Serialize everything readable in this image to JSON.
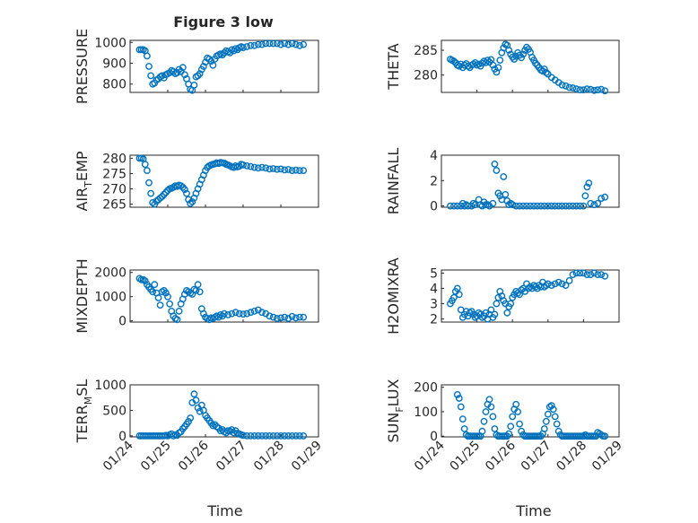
{
  "figure": {
    "title": "Figure 3 low",
    "xlabel": "Time",
    "marker_color": "#0072bd",
    "xlim": [
      0,
      5
    ],
    "xtick_labels": [
      "01/24",
      "01/25",
      "01/26",
      "01/27",
      "01/28",
      "01/29"
    ]
  },
  "chart_data": [
    {
      "type": "scatter",
      "ylabel": "PRESSURE",
      "ylim": [
        760,
        1010
      ],
      "yticks": [
        800,
        900,
        1000
      ],
      "x": [
        0.25,
        0.3,
        0.35,
        0.4,
        0.45,
        0.5,
        0.55,
        0.6,
        0.65,
        0.7,
        0.75,
        0.8,
        0.85,
        0.9,
        0.95,
        1.0,
        1.05,
        1.1,
        1.15,
        1.2,
        1.25,
        1.3,
        1.35,
        1.4,
        1.45,
        1.5,
        1.55,
        1.6,
        1.65,
        1.7,
        1.75,
        1.8,
        1.85,
        1.9,
        1.95,
        2.0,
        2.05,
        2.1,
        2.15,
        2.2,
        2.25,
        2.3,
        2.35,
        2.4,
        2.45,
        2.5,
        2.55,
        2.6,
        2.65,
        2.7,
        2.75,
        2.8,
        2.85,
        2.9,
        2.95,
        3.0,
        3.1,
        3.2,
        3.3,
        3.4,
        3.5,
        3.6,
        3.7,
        3.8,
        3.9,
        4.0,
        4.1,
        4.2,
        4.3,
        4.4,
        4.5,
        4.6
      ],
      "y": [
        965,
        965,
        965,
        960,
        935,
        885,
        840,
        800,
        805,
        820,
        825,
        835,
        840,
        830,
        845,
        850,
        855,
        865,
        860,
        850,
        855,
        870,
        860,
        880,
        845,
        825,
        800,
        775,
        770,
        795,
        835,
        840,
        850,
        870,
        885,
        905,
        925,
        920,
        910,
        890,
        920,
        935,
        940,
        945,
        940,
        950,
        960,
        955,
        950,
        965,
        960,
        970,
        965,
        975,
        980,
        975,
        980,
        985,
        985,
        990,
        990,
        995,
        995,
        995,
        995,
        990,
        995,
        990,
        995,
        990,
        985,
        990
      ]
    },
    {
      "type": "scatter",
      "ylabel": "THETA",
      "ylim": [
        276.5,
        287
      ],
      "yticks": [
        280,
        285
      ],
      "x": [
        0.25,
        0.3,
        0.35,
        0.4,
        0.45,
        0.5,
        0.55,
        0.6,
        0.65,
        0.7,
        0.75,
        0.8,
        0.85,
        0.9,
        0.95,
        1.0,
        1.05,
        1.1,
        1.15,
        1.2,
        1.25,
        1.3,
        1.35,
        1.4,
        1.45,
        1.5,
        1.55,
        1.6,
        1.65,
        1.7,
        1.75,
        1.8,
        1.85,
        1.9,
        1.95,
        2.0,
        2.05,
        2.1,
        2.15,
        2.2,
        2.25,
        2.3,
        2.35,
        2.4,
        2.45,
        2.5,
        2.55,
        2.6,
        2.65,
        2.7,
        2.75,
        2.8,
        2.85,
        2.9,
        2.95,
        3.0,
        3.1,
        3.2,
        3.3,
        3.4,
        3.5,
        3.6,
        3.7,
        3.8,
        3.9,
        4.0,
        4.1,
        4.2,
        4.3,
        4.4,
        4.5,
        4.6
      ],
      "y": [
        283.2,
        283.0,
        282.8,
        282.5,
        282.0,
        281.8,
        282.2,
        281.5,
        282.0,
        282.3,
        281.8,
        281.5,
        282.0,
        282.2,
        282.5,
        282.0,
        282.2,
        281.8,
        282.4,
        282.8,
        282.5,
        283.0,
        282.6,
        283.1,
        282.0,
        281.2,
        280.6,
        281.5,
        283.0,
        284.5,
        285.5,
        286.2,
        286.0,
        285.0,
        284.2,
        283.6,
        283.2,
        283.8,
        284.5,
        284.0,
        283.5,
        284.2,
        285.0,
        285.6,
        285.2,
        284.6,
        283.6,
        283.0,
        282.4,
        282.0,
        281.5,
        281.0,
        280.8,
        281.2,
        280.5,
        280.2,
        279.5,
        279.0,
        278.5,
        278.0,
        277.8,
        277.5,
        277.4,
        277.2,
        277.0,
        277.0,
        277.2,
        277.1,
        276.9,
        277.0,
        277.1,
        276.8
      ]
    },
    {
      "type": "scatter",
      "ylabel": "AIR_TEMP",
      "ylim": [
        264,
        281
      ],
      "yticks": [
        265,
        270,
        275,
        280
      ],
      "x": [
        0.25,
        0.3,
        0.35,
        0.4,
        0.45,
        0.5,
        0.55,
        0.6,
        0.65,
        0.7,
        0.75,
        0.8,
        0.85,
        0.9,
        0.95,
        1.0,
        1.05,
        1.1,
        1.15,
        1.2,
        1.25,
        1.3,
        1.35,
        1.4,
        1.45,
        1.5,
        1.55,
        1.6,
        1.65,
        1.7,
        1.75,
        1.8,
        1.85,
        1.9,
        1.95,
        2.0,
        2.05,
        2.1,
        2.15,
        2.2,
        2.25,
        2.3,
        2.35,
        2.4,
        2.45,
        2.5,
        2.55,
        2.6,
        2.65,
        2.7,
        2.75,
        2.8,
        2.85,
        2.9,
        2.95,
        3.0,
        3.1,
        3.2,
        3.3,
        3.4,
        3.5,
        3.6,
        3.7,
        3.8,
        3.9,
        4.0,
        4.1,
        4.2,
        4.3,
        4.4,
        4.5,
        4.6
      ],
      "y": [
        280,
        280,
        279.8,
        278,
        276,
        272,
        268.5,
        265.5,
        265,
        266,
        266.5,
        267,
        267.5,
        268.2,
        268.8,
        269.5,
        270,
        270.2,
        270.5,
        271,
        270.8,
        271.2,
        271,
        270.5,
        269.8,
        268.5,
        266.5,
        265.2,
        265.8,
        267,
        268.5,
        270,
        271.5,
        273,
        274.5,
        276,
        277,
        277.5,
        277.8,
        278,
        278.2,
        278.5,
        278.3,
        278.6,
        278.5,
        278.4,
        278,
        277.8,
        277.5,
        277.2,
        277,
        277.5,
        277.2,
        277.4,
        278,
        277.8,
        277.5,
        277.3,
        277,
        276.8,
        277,
        276.8,
        276.5,
        276.6,
        276.4,
        276.5,
        276.2,
        276.3,
        276,
        276.1,
        276,
        276
      ]
    },
    {
      "type": "scatter",
      "ylabel": "RAINFALL",
      "ylim": [
        -0.1,
        4
      ],
      "yticks": [
        0,
        2,
        4
      ],
      "x": [
        0.25,
        0.35,
        0.45,
        0.55,
        0.65,
        0.75,
        0.85,
        0.95,
        1.05,
        1.15,
        1.25,
        1.35,
        1.45,
        1.5,
        1.55,
        1.6,
        1.65,
        1.7,
        1.75,
        1.8,
        1.85,
        1.9,
        1.95,
        2.0,
        2.1,
        2.2,
        2.3,
        2.4,
        2.5,
        2.6,
        2.7,
        2.8,
        2.9,
        3.0,
        3.1,
        3.2,
        3.3,
        3.4,
        3.5,
        3.6,
        3.7,
        3.8,
        3.9,
        4.0,
        4.05,
        4.1,
        4.15,
        4.2,
        4.3,
        4.4,
        4.5,
        4.6,
        0.6,
        0.7,
        0.9,
        1.1,
        1.2,
        1.3
      ],
      "y": [
        0,
        0,
        0,
        0,
        0,
        0,
        0,
        0.1,
        0.5,
        0,
        0.1,
        0,
        0.2,
        3.3,
        2.8,
        1.0,
        0.8,
        0.5,
        2.3,
        0.9,
        0.4,
        0.1,
        0.2,
        0.1,
        0,
        0,
        0,
        0,
        0,
        0,
        0,
        0,
        0,
        0,
        0,
        0,
        0,
        0,
        0,
        0,
        0,
        0,
        0,
        0,
        0.8,
        1.5,
        1.8,
        0.2,
        0.1,
        0.2,
        0.6,
        0.7,
        0.2,
        0.1,
        0.2,
        0.1,
        0.3,
        0.1
      ]
    },
    {
      "type": "scatter",
      "ylabel": "MIXDEPTH",
      "ylim": [
        -50,
        2100
      ],
      "yticks": [
        0,
        1000,
        2000
      ],
      "x": [
        0.25,
        0.3,
        0.35,
        0.4,
        0.45,
        0.5,
        0.55,
        0.6,
        0.65,
        0.7,
        0.75,
        0.8,
        0.85,
        0.9,
        0.95,
        1.0,
        1.05,
        1.1,
        1.15,
        1.2,
        1.25,
        1.3,
        1.35,
        1.4,
        1.45,
        1.5,
        1.55,
        1.6,
        1.65,
        1.7,
        1.75,
        1.8,
        1.85,
        1.9,
        1.95,
        2.0,
        2.05,
        2.1,
        2.15,
        2.2,
        2.25,
        2.3,
        2.35,
        2.4,
        2.45,
        2.5,
        2.6,
        2.7,
        2.8,
        2.9,
        3.0,
        3.1,
        3.2,
        3.3,
        3.4,
        3.5,
        3.6,
        3.7,
        3.8,
        3.9,
        4.0,
        4.1,
        4.2,
        4.3,
        4.4,
        4.5,
        4.6
      ],
      "y": [
        1750,
        1700,
        1700,
        1650,
        1500,
        1400,
        1300,
        1200,
        1500,
        1150,
        950,
        650,
        1200,
        1250,
        1150,
        1000,
        700,
        400,
        200,
        100,
        50,
        400,
        700,
        900,
        1100,
        1250,
        1200,
        1150,
        1100,
        1300,
        1250,
        1500,
        1200,
        500,
        300,
        150,
        100,
        50,
        120,
        100,
        150,
        200,
        150,
        250,
        200,
        300,
        250,
        300,
        350,
        300,
        280,
        300,
        350,
        400,
        450,
        350,
        300,
        200,
        150,
        100,
        120,
        150,
        100,
        180,
        120,
        150,
        150
      ]
    },
    {
      "type": "scatter",
      "ylabel": "H2OMIXRA",
      "ylim": [
        1.8,
        5.2
      ],
      "yticks": [
        2,
        3,
        4,
        5
      ],
      "x": [
        0.25,
        0.3,
        0.35,
        0.4,
        0.45,
        0.5,
        0.55,
        0.6,
        0.65,
        0.7,
        0.75,
        0.8,
        0.85,
        0.9,
        0.95,
        1.0,
        1.05,
        1.1,
        1.15,
        1.2,
        1.25,
        1.3,
        1.35,
        1.4,
        1.45,
        1.5,
        1.55,
        1.6,
        1.65,
        1.7,
        1.75,
        1.8,
        1.85,
        1.9,
        1.95,
        2.0,
        2.05,
        2.1,
        2.15,
        2.2,
        2.25,
        2.3,
        2.35,
        2.4,
        2.45,
        2.5,
        2.55,
        2.6,
        2.65,
        2.7,
        2.75,
        2.8,
        2.85,
        2.9,
        2.95,
        3.0,
        3.1,
        3.2,
        3.3,
        3.4,
        3.5,
        3.6,
        3.7,
        3.8,
        3.9,
        4.0,
        4.1,
        4.2,
        4.3,
        4.4,
        4.5,
        4.6
      ],
      "y": [
        3.0,
        3.2,
        3.4,
        3.8,
        4.0,
        3.6,
        2.6,
        2.1,
        2.3,
        2.5,
        2.2,
        2.4,
        2.5,
        2.3,
        2.1,
        2.2,
        2.4,
        2.3,
        2.1,
        2.2,
        2.4,
        2.0,
        2.3,
        2.6,
        2.1,
        2.3,
        3.0,
        3.4,
        3.8,
        3.5,
        3.2,
        3.0,
        2.4,
        2.8,
        3.0,
        3.4,
        3.6,
        3.8,
        3.7,
        3.6,
        3.9,
        4.0,
        3.8,
        4.3,
        4.0,
        4.1,
        4.0,
        4.2,
        4.1,
        4.0,
        4.2,
        4.1,
        4.4,
        4.1,
        4.2,
        4.3,
        4.2,
        4.3,
        4.4,
        4.3,
        4.2,
        4.5,
        4.9,
        5.0,
        5.0,
        5.0,
        4.9,
        4.9,
        5.0,
        4.9,
        4.9,
        4.8
      ]
    },
    {
      "type": "scatter",
      "ylabel": "TERR_MSL",
      "ylim": [
        -20,
        1000
      ],
      "yticks": [
        0,
        500,
        1000
      ],
      "x": [
        0.25,
        0.3,
        0.35,
        0.4,
        0.45,
        0.5,
        0.55,
        0.6,
        0.65,
        0.7,
        0.75,
        0.8,
        0.85,
        0.9,
        0.95,
        1.0,
        1.05,
        1.1,
        1.15,
        1.2,
        1.25,
        1.3,
        1.35,
        1.4,
        1.45,
        1.5,
        1.55,
        1.6,
        1.65,
        1.7,
        1.75,
        1.8,
        1.85,
        1.9,
        1.95,
        2.0,
        2.05,
        2.1,
        2.15,
        2.2,
        2.25,
        2.3,
        2.35,
        2.4,
        2.45,
        2.5,
        2.55,
        2.6,
        2.65,
        2.7,
        2.75,
        2.8,
        2.85,
        2.9,
        2.95,
        3.0,
        3.1,
        3.2,
        3.3,
        3.4,
        3.5,
        3.6,
        3.7,
        3.8,
        3.9,
        4.0,
        4.1,
        4.2,
        4.3,
        4.4,
        4.5,
        4.6
      ],
      "y": [
        0,
        0,
        0,
        0,
        0,
        0,
        0,
        0,
        0,
        0,
        0,
        0,
        0,
        0,
        10,
        0,
        20,
        40,
        0,
        20,
        10,
        60,
        80,
        140,
        180,
        230,
        280,
        350,
        650,
        820,
        700,
        550,
        480,
        600,
        500,
        400,
        350,
        300,
        250,
        200,
        220,
        180,
        150,
        100,
        120,
        80,
        60,
        100,
        90,
        120,
        60,
        100,
        50,
        40,
        20,
        10,
        0,
        0,
        0,
        0,
        0,
        0,
        0,
        0,
        0,
        0,
        0,
        0,
        0,
        0,
        0,
        0
      ]
    },
    {
      "type": "scatter",
      "ylabel": "SUN_FLUX",
      "ylim": [
        -3,
        210
      ],
      "yticks": [
        0,
        100,
        200
      ],
      "x": [
        0.45,
        0.5,
        0.55,
        0.6,
        0.65,
        0.7,
        0.75,
        0.8,
        0.85,
        0.9,
        0.95,
        1.0,
        1.05,
        1.1,
        1.15,
        1.2,
        1.25,
        1.3,
        1.35,
        1.4,
        1.45,
        1.5,
        1.55,
        1.6,
        1.65,
        1.7,
        1.75,
        1.8,
        1.85,
        1.9,
        1.95,
        2.0,
        2.05,
        2.1,
        2.15,
        2.2,
        2.25,
        2.3,
        2.35,
        2.4,
        2.45,
        2.5,
        2.55,
        2.6,
        2.65,
        2.7,
        2.75,
        2.8,
        2.85,
        2.9,
        2.95,
        3.0,
        3.05,
        3.1,
        3.15,
        3.2,
        3.25,
        3.3,
        3.35,
        3.4,
        3.45,
        3.5,
        3.55,
        3.6,
        3.65,
        3.7,
        3.75,
        3.8,
        3.85,
        3.9,
        3.95,
        4.0,
        4.05,
        4.1,
        4.15,
        4.2,
        4.25,
        4.3,
        4.35,
        4.4,
        4.45,
        4.5,
        4.55,
        4.6
      ],
      "y": [
        170,
        155,
        120,
        70,
        30,
        5,
        0,
        0,
        0,
        0,
        0,
        0,
        0,
        0,
        20,
        60,
        100,
        130,
        150,
        120,
        80,
        30,
        5,
        0,
        0,
        0,
        0,
        0,
        0,
        10,
        40,
        80,
        110,
        130,
        100,
        50,
        20,
        5,
        0,
        0,
        0,
        0,
        0,
        0,
        0,
        0,
        0,
        0,
        10,
        30,
        60,
        90,
        120,
        125,
        110,
        80,
        50,
        20,
        5,
        0,
        0,
        0,
        0,
        0,
        0,
        0,
        0,
        0,
        0,
        0,
        0,
        0,
        5,
        0,
        0,
        0,
        0,
        0,
        0,
        15,
        10,
        5,
        0,
        0
      ]
    }
  ]
}
